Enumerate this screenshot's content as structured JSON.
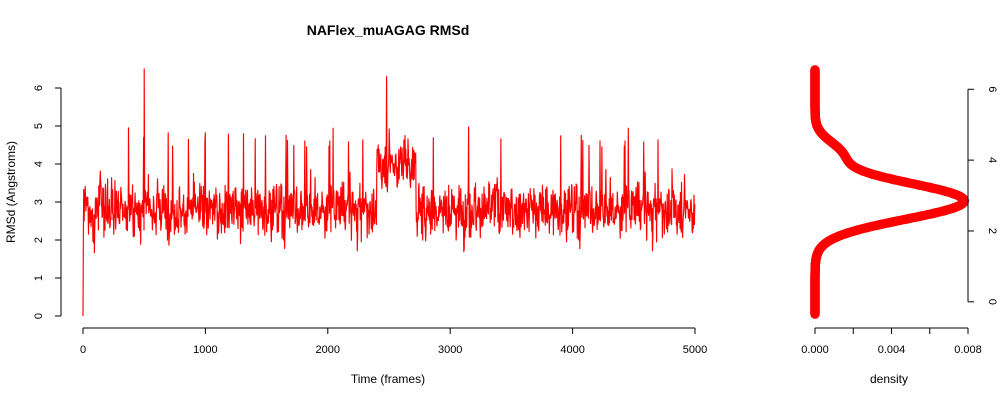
{
  "title": "NAFlex_muAGAG RMSd",
  "colors": {
    "series": "#ff0000",
    "axis": "#000000"
  },
  "chart_data": [
    {
      "type": "line",
      "xlabel": "Time (frames)",
      "ylabel": "RMSd (Angstroms)",
      "xlim": [
        0,
        5000
      ],
      "ylim": [
        0,
        6.5
      ],
      "xticks": [
        "0",
        "1000",
        "2000",
        "3000",
        "4000",
        "5000"
      ],
      "yticks": [
        "0",
        "1",
        "2",
        "3",
        "4",
        "5",
        "6"
      ],
      "grid": false,
      "series_segments": [
        {
          "x": [
            0,
            2400
          ],
          "mean": 2.8,
          "low": 1.5,
          "high": 5.0
        },
        {
          "x": [
            2400,
            2720
          ],
          "mean": 4.0,
          "low": 2.8,
          "high": 6.3
        },
        {
          "x": [
            2720,
            5000
          ],
          "mean": 2.8,
          "low": 1.4,
          "high": 5.0
        }
      ],
      "notable_points": [
        {
          "x": 0,
          "y": 0
        },
        {
          "x": 500,
          "y": 6.5
        },
        {
          "x": 2480,
          "y": 6.3
        }
      ]
    },
    {
      "type": "line",
      "xlabel": "density",
      "ylabel": "",
      "xlim": [
        0,
        0.008
      ],
      "ylim": [
        -0.4,
        6.6
      ],
      "xticks": [
        "0.000",
        "0.004",
        "0.008"
      ],
      "yticks": [
        "0",
        "2",
        "4",
        "6"
      ],
      "y_axis_side": "right",
      "density_mean": 2.85,
      "density_sd": 0.52,
      "density_peak": 0.0078,
      "density_shoulder_at": 4.2,
      "y_range": [
        -0.35,
        6.55
      ]
    }
  ]
}
